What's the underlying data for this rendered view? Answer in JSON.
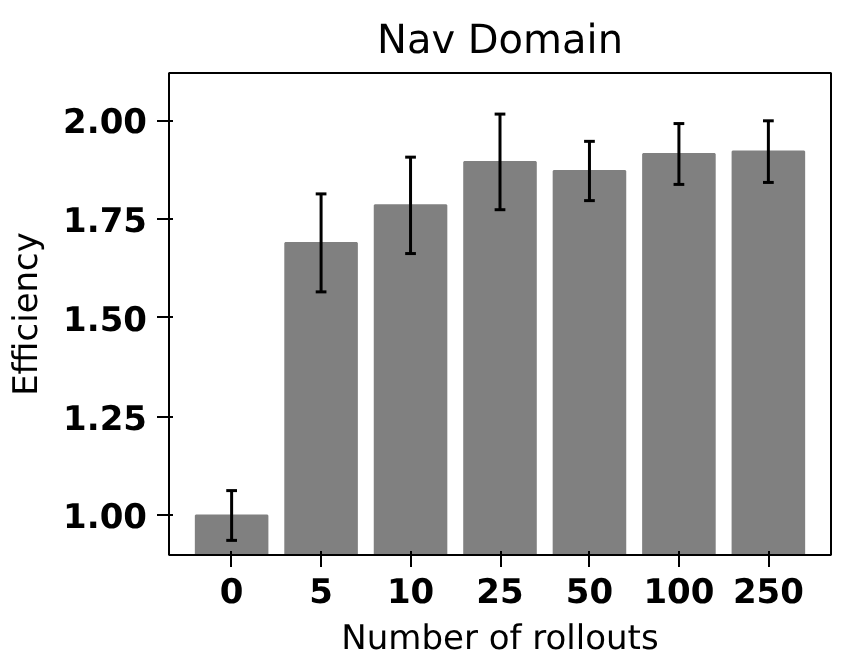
{
  "chart_data": {
    "type": "bar",
    "title": "Nav Domain",
    "xlabel": "Number of rollouts",
    "ylabel": "Efficiency",
    "categories": [
      "0",
      "5",
      "10",
      "25",
      "50",
      "100",
      "250"
    ],
    "values": [
      1.0,
      1.69,
      1.785,
      1.895,
      1.872,
      1.915,
      1.921
    ],
    "errors": [
      0.063,
      0.124,
      0.122,
      0.121,
      0.075,
      0.077,
      0.078
    ],
    "color": "#808080",
    "ylim": [
      0.9,
      2.12
    ],
    "yticks": [
      {
        "value": 1.0,
        "label": "1.00"
      },
      {
        "value": 1.25,
        "label": "1.25"
      },
      {
        "value": 1.5,
        "label": "1.50"
      },
      {
        "value": 1.75,
        "label": "1.75"
      },
      {
        "value": 2.0,
        "label": "2.00"
      }
    ],
    "grid": false
  }
}
